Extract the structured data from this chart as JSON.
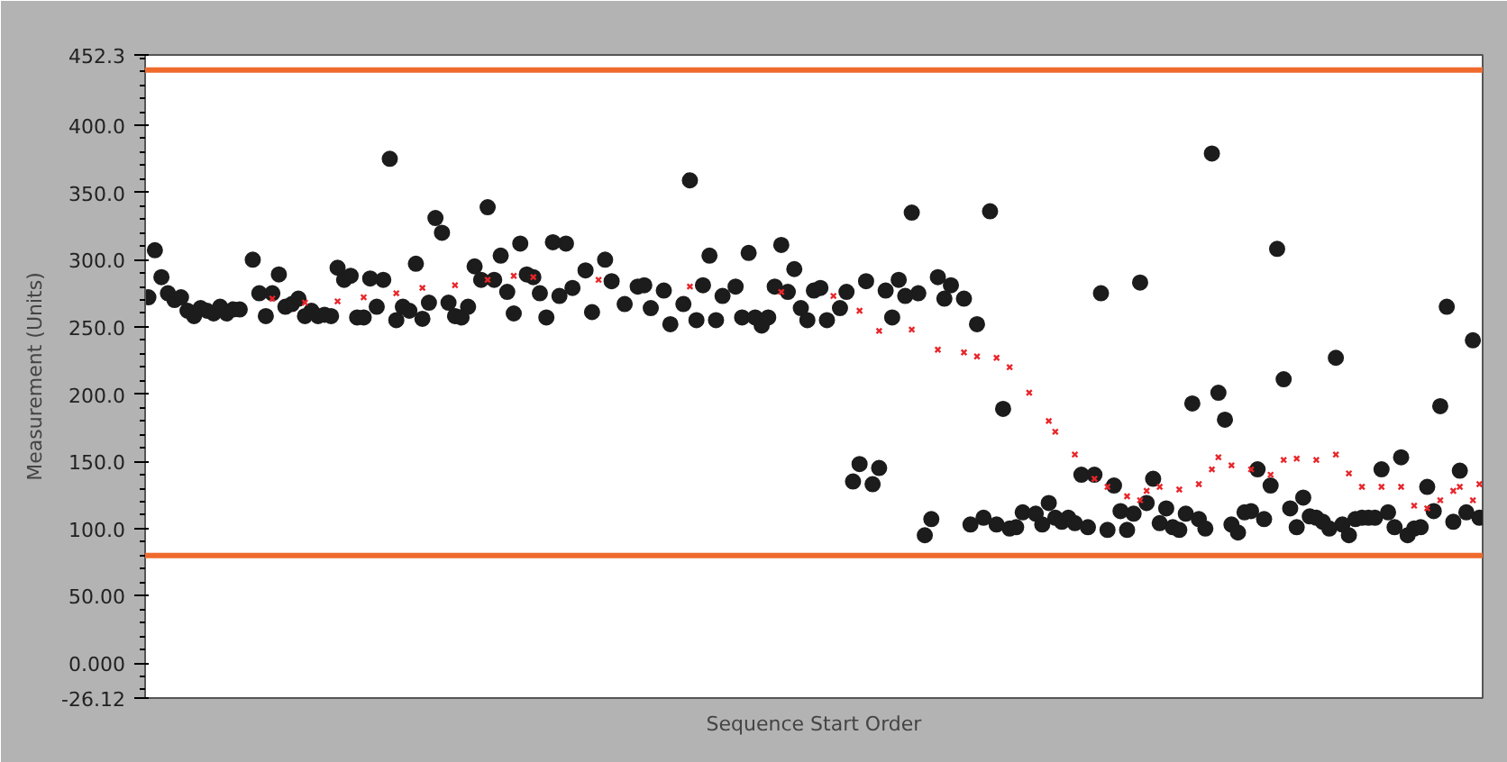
{
  "chart_data": {
    "type": "scatter",
    "xlabel": "Sequence Start Order",
    "ylabel": "Measurement (Units)",
    "categories": [
      null,
      null,
      null,
      null,
      null,
      null,
      null,
      null,
      null,
      null,
      null,
      null,
      null,
      null,
      null,
      null,
      null,
      null,
      null,
      null,
      null,
      null,
      null,
      null,
      null,
      null,
      null,
      null,
      null,
      null,
      null,
      null,
      null,
      null,
      null,
      null,
      null,
      null,
      null,
      null,
      null,
      null,
      null,
      null,
      null,
      null,
      null,
      null,
      null,
      null,
      null,
      null,
      null,
      null,
      null,
      null,
      null,
      null,
      null,
      null,
      null,
      null,
      null,
      null,
      null,
      null,
      null,
      null,
      null,
      null,
      null,
      null,
      null,
      null,
      null,
      null,
      null,
      null,
      null,
      null,
      null,
      null,
      null,
      null,
      null,
      null,
      null,
      null,
      null,
      null,
      null,
      null,
      null,
      null,
      null,
      null,
      null,
      null,
      null,
      null,
      null,
      null,
      null,
      null,
      null,
      null,
      null,
      null,
      null,
      null,
      null,
      null,
      null,
      null,
      null,
      null,
      null,
      null,
      null,
      null,
      null,
      null,
      null,
      null,
      null,
      null,
      null,
      null,
      null,
      null,
      null,
      null,
      null,
      null,
      null,
      null,
      null,
      null,
      null,
      null,
      null,
      null,
      null,
      null,
      null,
      null,
      null,
      null,
      null,
      null,
      null,
      null,
      null,
      null,
      null,
      null,
      null,
      null,
      null,
      null,
      null,
      null,
      null,
      null,
      null,
      null,
      null,
      null,
      null,
      null,
      null,
      null,
      null,
      null,
      null,
      null,
      null,
      null,
      null,
      null,
      null,
      null,
      null,
      null,
      null,
      null,
      null,
      null,
      null,
      null,
      null,
      null,
      null,
      null,
      null,
      null,
      null,
      null,
      null,
      null,
      null,
      null,
      null,
      null,
      null
    ],
    "ylim": [
      -26.12,
      452.3
    ],
    "yticks": [
      {
        "value": -26.12,
        "label": "-26.12"
      },
      {
        "value": 0,
        "label": "0.000"
      },
      {
        "value": 50,
        "label": "50.00"
      },
      {
        "value": 100,
        "label": "100.0"
      },
      {
        "value": 150,
        "label": "150.0"
      },
      {
        "value": 200,
        "label": "200.0"
      },
      {
        "value": 250,
        "label": "250.0"
      },
      {
        "value": 300,
        "label": "300.0"
      },
      {
        "value": 350,
        "label": "350.0"
      },
      {
        "value": 400,
        "label": "400.0"
      },
      {
        "value": 452.3,
        "label": "452.3"
      }
    ],
    "ref_lines": [
      {
        "axis": "y",
        "value": 441,
        "label": null,
        "color": "#ef6a2c"
      },
      {
        "axis": "y",
        "value": 80,
        "label": null,
        "color": "#ef6a2c"
      }
    ],
    "series": [
      {
        "marker": "circle",
        "color": "#1c1c1c",
        "values": [
          272,
          307,
          287,
          275,
          270,
          272,
          262,
          258,
          264,
          262,
          260,
          265,
          260,
          263,
          263,
          null,
          300,
          275,
          258,
          275,
          289,
          265,
          267,
          271,
          258,
          262,
          258,
          259,
          258,
          294,
          285,
          288,
          257,
          257,
          286,
          265,
          285,
          375,
          255,
          265,
          262,
          297,
          256,
          268,
          331,
          320,
          268,
          258,
          257,
          265,
          295,
          285,
          339,
          285,
          303,
          276,
          260,
          312,
          289,
          287,
          275,
          257,
          313,
          273,
          312,
          279,
          null,
          292,
          261,
          null,
          300,
          284,
          null,
          267,
          null,
          280,
          281,
          264,
          null,
          277,
          252,
          null,
          267,
          359,
          255,
          281,
          303,
          255,
          273,
          null,
          280,
          257,
          305,
          257,
          251,
          257,
          280,
          311,
          276,
          293,
          264,
          255,
          277,
          279,
          255,
          null,
          264,
          276,
          135,
          148,
          284,
          133,
          145,
          277,
          257,
          285,
          273,
          335,
          275,
          95,
          107,
          287,
          271,
          281,
          null,
          271,
          103,
          252,
          108,
          336,
          103,
          189,
          100,
          101,
          112,
          null,
          111,
          103,
          119,
          108,
          105,
          108,
          104,
          140,
          101,
          140,
          275,
          99,
          132,
          113,
          99,
          111,
          283,
          119,
          137,
          104,
          115,
          101,
          99,
          111,
          193,
          107,
          100,
          379,
          201,
          181,
          103,
          97,
          112,
          113,
          144,
          107,
          132,
          308,
          211,
          115,
          101,
          123,
          109,
          108,
          105,
          100,
          227,
          103,
          95,
          107,
          108,
          108,
          108,
          144,
          112,
          101,
          153,
          95,
          100,
          101,
          131,
          113,
          191,
          265,
          105,
          143,
          112,
          240,
          108
        ]
      },
      {
        "marker": "cross",
        "color": "#e8262a",
        "values": [
          null,
          null,
          null,
          null,
          null,
          null,
          null,
          null,
          null,
          null,
          null,
          null,
          null,
          null,
          null,
          null,
          null,
          null,
          null,
          271,
          null,
          null,
          null,
          null,
          268,
          null,
          null,
          null,
          null,
          269,
          null,
          null,
          null,
          272,
          null,
          null,
          null,
          null,
          275,
          null,
          null,
          null,
          279,
          null,
          null,
          null,
          null,
          281,
          null,
          null,
          null,
          null,
          285,
          null,
          null,
          null,
          288,
          null,
          null,
          287,
          null,
          null,
          null,
          null,
          null,
          null,
          null,
          null,
          null,
          285,
          null,
          null,
          null,
          null,
          null,
          null,
          null,
          null,
          null,
          null,
          null,
          null,
          null,
          280,
          null,
          null,
          null,
          null,
          null,
          null,
          null,
          null,
          null,
          null,
          null,
          null,
          null,
          276,
          null,
          null,
          null,
          null,
          null,
          null,
          null,
          273,
          null,
          null,
          null,
          262,
          null,
          null,
          247,
          null,
          null,
          null,
          null,
          248,
          null,
          null,
          null,
          233,
          null,
          null,
          null,
          231,
          null,
          228,
          null,
          null,
          227,
          null,
          220,
          null,
          null,
          201,
          null,
          null,
          180,
          172,
          null,
          null,
          155,
          null,
          null,
          137,
          null,
          131,
          null,
          null,
          124,
          null,
          121,
          128,
          null,
          131,
          null,
          null,
          129,
          null,
          null,
          133,
          null,
          144,
          153,
          null,
          147,
          null,
          null,
          144,
          null,
          null,
          140,
          null,
          151,
          null,
          152,
          null,
          null,
          151,
          null,
          null,
          155,
          null,
          141,
          null,
          131,
          null,
          null,
          131,
          null,
          null,
          131,
          null,
          117,
          null,
          115,
          null,
          121,
          null,
          128,
          131,
          null,
          121,
          133
        ]
      }
    ]
  }
}
